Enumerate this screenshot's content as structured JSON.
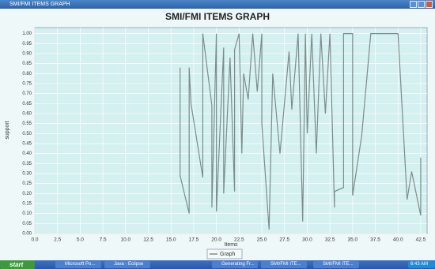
{
  "window": {
    "title": "SMI/FMI ITEMS GRAPH"
  },
  "chart_data": {
    "type": "line",
    "title": "SMI/FMI ITEMS GRAPH",
    "xlabel": "Items",
    "ylabel": "support",
    "x": [
      16,
      16,
      17,
      17,
      17.2,
      18.5,
      18.5,
      19.5,
      19.5,
      20,
      20,
      20.8,
      20.8,
      21.5,
      22,
      22,
      22.5,
      22.8,
      23,
      23.5,
      24,
      24.5,
      25,
      25,
      25.8,
      26.2,
      27,
      28,
      28.3,
      29,
      29.5,
      29.8,
      30,
      30.5,
      31,
      31.5,
      32,
      32.5,
      33,
      33,
      34,
      34,
      35,
      35,
      36,
      37,
      40,
      41,
      41.5,
      42.5,
      42.5
    ],
    "series": [
      {
        "name": "Graph",
        "color": "#7d8c8c",
        "values": [
          0.83,
          0.29,
          0.1,
          0.83,
          0.65,
          0.28,
          1.0,
          0.64,
          0.13,
          1.0,
          0.11,
          0.93,
          0.2,
          0.88,
          0.21,
          0.92,
          1.0,
          0.4,
          0.8,
          0.67,
          1.0,
          0.71,
          1.0,
          0.55,
          0.02,
          0.8,
          0.4,
          0.91,
          0.62,
          1.0,
          0.06,
          1.0,
          0.5,
          1.0,
          0.4,
          1.0,
          0.6,
          1.0,
          0.13,
          0.21,
          0.23,
          1.0,
          1.0,
          0.19,
          0.49,
          1.0,
          1.0,
          0.17,
          0.31,
          0.09,
          0.38
        ]
      }
    ],
    "xlim": [
      0,
      43.2
    ],
    "ylim": [
      0,
      1.03
    ],
    "xticks": [
      {
        "value": 0,
        "label": "0.0"
      },
      2.5,
      {
        "value": 5,
        "label": "5.0"
      },
      7.5,
      {
        "value": 10,
        "label": "10.0"
      },
      12.5,
      {
        "value": 15,
        "label": "15.0"
      },
      17.5,
      {
        "value": 20,
        "label": "20.0"
      },
      22.5,
      {
        "value": 25,
        "label": "25.0"
      },
      27.5,
      {
        "value": 30,
        "label": "30.0"
      },
      32.5,
      {
        "value": 35,
        "label": "35.0"
      },
      37.5,
      {
        "value": 40,
        "label": "40.0"
      },
      42.5
    ],
    "yticks": [
      {
        "value": 0,
        "label": "0.00"
      },
      0.05,
      {
        "value": 0.1,
        "label": "0.10"
      },
      0.15,
      {
        "value": 0.2,
        "label": "0.20"
      },
      0.25,
      {
        "value": 0.3,
        "label": "0.30"
      },
      0.35,
      {
        "value": 0.4,
        "label": "0.40"
      },
      0.45,
      {
        "value": 0.5,
        "label": "0.50"
      },
      0.55,
      {
        "value": 0.6,
        "label": "0.60"
      },
      0.65,
      {
        "value": 0.7,
        "label": "0.70"
      },
      0.75,
      {
        "value": 0.8,
        "label": "0.80"
      },
      0.85,
      {
        "value": 0.9,
        "label": "0.90"
      },
      0.95,
      {
        "value": 1,
        "label": "1.00"
      }
    ],
    "grid": true
  },
  "taskbar": {
    "start": "start",
    "items": [
      "Microsoft Po...",
      "Java - Eclipse",
      "Generating Fr...",
      "SMI/FMI ITE...",
      "SMI/FMI ITE..."
    ],
    "clock": "6:43 AM"
  }
}
